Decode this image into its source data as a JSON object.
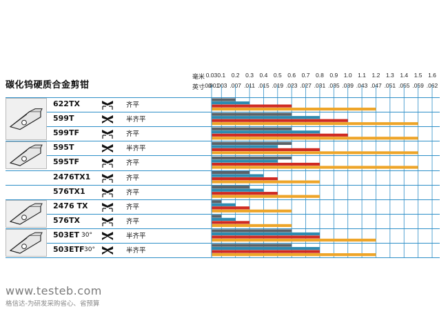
{
  "title": "碳化钨硬质合金剪钳",
  "footer": {
    "url": "www.testeb.com",
    "tagline": "格信达-为研发采购省心、省预算"
  },
  "colors": {
    "grid": "#2c8ec7",
    "bar_gray": "#5b6268",
    "bar_teal": "#2d8bb0",
    "bar_red": "#cf2a22",
    "bar_orange": "#eea529",
    "picture_bg": "#f0f0f0"
  },
  "chart_data": {
    "type": "bar",
    "orientation": "horizontal",
    "axis_labels": {
      "mm": "毫米",
      "inch": "英寸"
    },
    "mm_ticks": [
      "0.03",
      "0.1",
      "0.2",
      "0.3",
      "0.4",
      "0.5",
      "0.6",
      "0.7",
      "0.8",
      "0.9",
      "1.0",
      "1.1",
      "1.2",
      "1.3",
      "1.4",
      "1.5",
      "1.6"
    ],
    "inch_ticks": [
      ".001",
      ".003",
      ".007",
      ".011",
      ".015",
      ".019",
      ".023",
      ".027",
      ".031",
      ".035",
      ".039",
      ".043",
      ".047",
      ".051",
      ".055",
      ".059",
      ".062"
    ],
    "inch_prefix": ".00",
    "xlim_mm": [
      0.03,
      1.6
    ],
    "categories": [
      "622TX",
      "599T",
      "599TF",
      "595T",
      "595TF",
      "2476TX1",
      "576TX1",
      "2476 TX",
      "576TX",
      "503ET",
      "503ETF"
    ],
    "angles": [
      "",
      "",
      "",
      "",
      "",
      "",
      "",
      "",
      "",
      "30°",
      "30°"
    ],
    "cut_types": [
      "齐平",
      "半齐平",
      "齐平",
      "半齐平",
      "齐平",
      "齐平",
      "齐平",
      "齐平",
      "齐平",
      "半齐平",
      "半齐平"
    ],
    "series": [
      {
        "color": "#5b6268",
        "values": [
          0.2,
          0.6,
          0.6,
          0.6,
          0.6,
          0.3,
          0.3,
          0.1,
          0.1,
          0.6,
          0.6
        ]
      },
      {
        "color": "#2d8bb0",
        "values": [
          0.3,
          0.8,
          0.8,
          0.5,
          0.5,
          0.4,
          0.4,
          0.2,
          0.2,
          0.8,
          0.8
        ]
      },
      {
        "color": "#cf2a22",
        "values": [
          0.6,
          1.0,
          1.0,
          0.8,
          0.8,
          0.5,
          0.5,
          0.3,
          0.3,
          0.8,
          0.8
        ]
      },
      {
        "color": "#eea529",
        "values": [
          1.2,
          1.5,
          1.5,
          1.5,
          1.5,
          0.8,
          0.8,
          0.6,
          0.6,
          1.2,
          1.2
        ]
      }
    ]
  }
}
